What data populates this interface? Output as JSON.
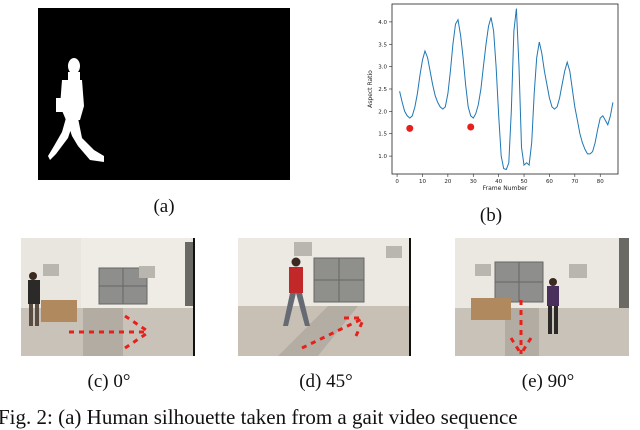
{
  "panels": {
    "a": {
      "caption": "(a)"
    },
    "b": {
      "caption": "(b)"
    },
    "c": {
      "caption": "(c) 0°"
    },
    "d": {
      "caption": "(d) 45°"
    },
    "e": {
      "caption": "(e) 90°"
    }
  },
  "figure_caption": "Fig. 2: (a) Human silhouette taken from a gait video sequence",
  "chart_data": {
    "type": "line",
    "xlabel": "Frame Number",
    "ylabel": "Aspect Ratio",
    "xlim": [
      -2,
      87
    ],
    "ylim": [
      0.6,
      4.4
    ],
    "xticks": [
      0,
      10,
      20,
      30,
      40,
      50,
      60,
      70,
      80
    ],
    "yticks": [
      1.0,
      1.5,
      2.0,
      2.5,
      3.0,
      3.5,
      4.0
    ],
    "xtick_labels": [
      "0",
      "10",
      "20",
      "30",
      "40",
      "50",
      "60",
      "70",
      "80"
    ],
    "ytick_labels": [
      "1.0",
      "1.5",
      "2.0",
      "2.5",
      "3.0",
      "3.5",
      "4.0"
    ],
    "line_color": "#1f77b4",
    "marker_color": "#e8201c",
    "series": [
      {
        "x": [
          1,
          2,
          3,
          4,
          5,
          6,
          7,
          8,
          9,
          10,
          11,
          12,
          13,
          14,
          15,
          16,
          17,
          18,
          19,
          20,
          21,
          22,
          23,
          24,
          25,
          26,
          27,
          28,
          29,
          30,
          31,
          32,
          33,
          34,
          35,
          36,
          37,
          38,
          39,
          40,
          41,
          42,
          43,
          44,
          45,
          46,
          47,
          48,
          49,
          50,
          51,
          52,
          53,
          54,
          55,
          56,
          57,
          58,
          59,
          60,
          61,
          62,
          63,
          64,
          65,
          66,
          67,
          68,
          69,
          70,
          71,
          72,
          73,
          74,
          75,
          76,
          77,
          78,
          79,
          80,
          81,
          82,
          83,
          84,
          85
        ],
        "y": [
          2.45,
          2.2,
          2.0,
          1.9,
          1.85,
          1.9,
          2.1,
          2.4,
          2.8,
          3.15,
          3.35,
          3.2,
          2.9,
          2.6,
          2.35,
          2.2,
          2.1,
          2.05,
          2.1,
          2.4,
          2.9,
          3.5,
          3.95,
          4.05,
          3.7,
          3.2,
          2.6,
          2.1,
          1.9,
          1.85,
          1.95,
          2.15,
          2.5,
          3.0,
          3.5,
          3.9,
          4.1,
          3.8,
          3.0,
          1.9,
          1.0,
          0.72,
          0.7,
          0.85,
          2.0,
          3.8,
          4.3,
          3.0,
          1.2,
          0.8,
          0.85,
          0.8,
          1.3,
          2.4,
          3.2,
          3.55,
          3.3,
          2.9,
          2.6,
          2.3,
          2.1,
          2.05,
          2.1,
          2.3,
          2.6,
          2.9,
          3.1,
          2.9,
          2.5,
          2.1,
          1.8,
          1.5,
          1.3,
          1.15,
          1.05,
          1.05,
          1.1,
          1.3,
          1.6,
          1.85,
          1.9,
          1.8,
          1.7,
          1.9,
          2.2
        ]
      }
    ],
    "markers": [
      {
        "x": 5,
        "y": 1.62
      },
      {
        "x": 29,
        "y": 1.65
      }
    ]
  }
}
